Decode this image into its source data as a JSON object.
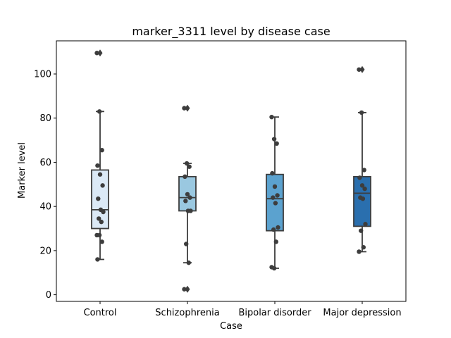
{
  "chart_data": {
    "type": "box",
    "title": "marker_3311 level by disease case",
    "xlabel": "Case",
    "ylabel": "Marker level",
    "ylim": [
      -3,
      115
    ],
    "yticks": [
      0,
      20,
      40,
      60,
      80,
      100
    ],
    "grid": false,
    "categories": [
      "Control",
      "Schizophrenia",
      "Bipolar disorder",
      "Major depression"
    ],
    "colors": [
      "#dbe9f6",
      "#9ac8e0",
      "#5ba2cf",
      "#2a6fae"
    ],
    "boxes": [
      {
        "category": "Control",
        "q1": 30.0,
        "median": 38.5,
        "q3": 56.5,
        "whisker_low": 16.0,
        "whisker_high": 83.0,
        "outliers": [
          109.5
        ]
      },
      {
        "category": "Schizophrenia",
        "q1": 38.0,
        "median": 44.0,
        "q3": 53.5,
        "whisker_low": 14.5,
        "whisker_high": 59.5,
        "outliers": [
          84.5,
          2.5
        ]
      },
      {
        "category": "Bipolar disorder",
        "q1": 29.0,
        "median": 43.5,
        "q3": 54.5,
        "whisker_low": 12.0,
        "whisker_high": 80.5,
        "outliers": []
      },
      {
        "category": "Major depression",
        "q1": 31.0,
        "median": 46.0,
        "q3": 53.5,
        "whisker_low": 19.5,
        "whisker_high": 82.5,
        "outliers": [
          102.0
        ]
      }
    ],
    "points": [
      {
        "category": "Control",
        "values": [
          109.5,
          83.0,
          65.5,
          58.5,
          54.5,
          49.5,
          43.5,
          38.5,
          37.5,
          34.5,
          33.0,
          27.0,
          27.0,
          24.0,
          16.0
        ]
      },
      {
        "category": "Schizophrenia",
        "values": [
          84.5,
          59.5,
          58.0,
          53.5,
          45.5,
          44.0,
          42.5,
          38.0,
          38.0,
          23.0,
          14.5,
          2.5
        ]
      },
      {
        "category": "Bipolar disorder",
        "values": [
          80.5,
          70.5,
          68.5,
          55.0,
          49.0,
          45.0,
          44.0,
          41.5,
          30.5,
          29.5,
          24.0,
          12.5,
          12.0
        ]
      },
      {
        "category": "Major depression",
        "values": [
          102.0,
          82.5,
          56.5,
          53.0,
          49.5,
          48.0,
          44.0,
          43.5,
          32.0,
          29.0,
          21.5,
          19.5
        ]
      }
    ]
  }
}
